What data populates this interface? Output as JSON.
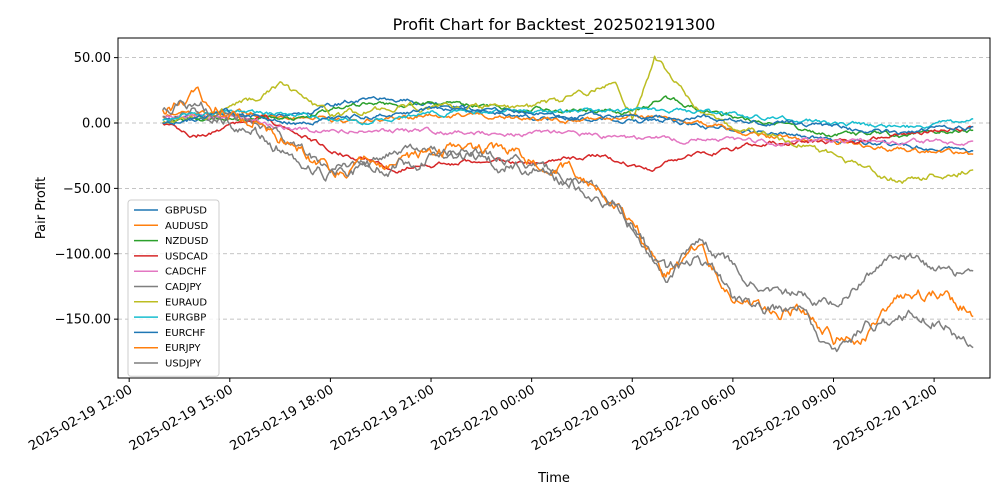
{
  "chart_data": {
    "type": "line",
    "title": "Profit Chart for Backtest_202502191300",
    "xlabel": "Time",
    "ylabel": "Pair Profit",
    "xlim": [
      "2025-02-19 11:40",
      "2025-02-20 13:40"
    ],
    "ylim": [
      -195,
      65
    ],
    "yticks": [
      50,
      0,
      -50,
      -100,
      -150
    ],
    "ytick_labels": [
      "50.00",
      "0.00",
      "−50.00",
      "−100.00",
      "−150.00"
    ],
    "xticks": [
      "2025-02-19 12:00",
      "2025-02-19 15:00",
      "2025-02-19 18:00",
      "2025-02-19 21:00",
      "2025-02-20 00:00",
      "2025-02-20 03:00",
      "2025-02-20 06:00",
      "2025-02-20 09:00",
      "2025-02-20 12:00"
    ],
    "xtick_labels": [
      "2025-02-19 12:00",
      "2025-02-19 15:00",
      "2025-02-19 18:00",
      "2025-02-19 21:00",
      "2025-02-20 00:00",
      "2025-02-20 03:00",
      "2025-02-20 06:00",
      "2025-02-20 09:00",
      "2025-02-20 12:00"
    ],
    "grid": "horizontal dashed",
    "legend_position": "lower-left",
    "series": [
      {
        "name": "GBPUSD",
        "color": "#1f77b4",
        "x": [
          "2025-02-19 13:00",
          "2025-02-19 15:00",
          "2025-02-19 17:00",
          "2025-02-19 19:00",
          "2025-02-19 20:00",
          "2025-02-19 22:00",
          "2025-02-20 00:00",
          "2025-02-20 02:00",
          "2025-02-20 04:00",
          "2025-02-20 06:00",
          "2025-02-20 08:00",
          "2025-02-20 10:00",
          "2025-02-20 12:00",
          "2025-02-20 13:10"
        ],
        "y": [
          2,
          6,
          5,
          20,
          18,
          12,
          5,
          3,
          2,
          -5,
          -10,
          -15,
          -18,
          -22
        ]
      },
      {
        "name": "AUDUSD",
        "color": "#ff7f0e",
        "x": [
          "2025-02-19 13:00",
          "2025-02-19 15:00",
          "2025-02-19 17:00",
          "2025-02-19 19:00",
          "2025-02-19 21:00",
          "2025-02-19 23:00",
          "2025-02-20 01:00",
          "2025-02-20 03:00",
          "2025-02-20 05:00",
          "2025-02-20 07:00",
          "2025-02-20 09:00",
          "2025-02-20 11:00",
          "2025-02-20 13:10"
        ],
        "y": [
          5,
          8,
          4,
          2,
          6,
          6,
          2,
          5,
          0,
          -10,
          -15,
          -20,
          -25
        ]
      },
      {
        "name": "NZDUSD",
        "color": "#2ca02c",
        "x": [
          "2025-02-19 13:00",
          "2025-02-19 15:00",
          "2025-02-19 17:00",
          "2025-02-19 19:00",
          "2025-02-19 21:00",
          "2025-02-19 23:00",
          "2025-02-20 01:00",
          "2025-02-20 03:00",
          "2025-02-20 04:00",
          "2025-02-20 05:00",
          "2025-02-20 07:00",
          "2025-02-20 09:00",
          "2025-02-20 11:00",
          "2025-02-20 13:10"
        ],
        "y": [
          0,
          4,
          5,
          15,
          15,
          12,
          10,
          8,
          20,
          10,
          0,
          -8,
          -10,
          -5
        ]
      },
      {
        "name": "USDCAD",
        "color": "#d62728",
        "x": [
          "2025-02-19 13:00",
          "2025-02-19 14:00",
          "2025-02-19 16:00",
          "2025-02-19 18:00",
          "2025-02-19 20:00",
          "2025-02-19 22:00",
          "2025-02-20 00:00",
          "2025-02-20 02:00",
          "2025-02-20 03:30",
          "2025-02-20 05:00",
          "2025-02-20 07:00",
          "2025-02-20 09:00",
          "2025-02-20 11:00",
          "2025-02-20 13:10"
        ],
        "y": [
          0,
          -10,
          5,
          -20,
          -35,
          -30,
          -30,
          -25,
          -35,
          -25,
          -15,
          -15,
          -8,
          -3
        ]
      },
      {
        "name": "CADCHF",
        "color": "#e377c2",
        "x": [
          "2025-02-19 13:00",
          "2025-02-19 15:00",
          "2025-02-19 17:00",
          "2025-02-19 19:00",
          "2025-02-19 21:00",
          "2025-02-19 23:00",
          "2025-02-20 01:00",
          "2025-02-20 03:00",
          "2025-02-20 05:00",
          "2025-02-20 07:00",
          "2025-02-20 09:00",
          "2025-02-20 11:00",
          "2025-02-20 13:10"
        ],
        "y": [
          5,
          5,
          -5,
          -5,
          -6,
          -8,
          -8,
          -12,
          -12,
          -15,
          -15,
          -15,
          -14
        ]
      },
      {
        "name": "CADJPY",
        "color": "#7f7f7f",
        "x": [
          "2025-02-19 13:00",
          "2025-02-19 14:00",
          "2025-02-19 16:00",
          "2025-02-19 18:00",
          "2025-02-19 20:00",
          "2025-02-19 22:00",
          "2025-02-20 00:00",
          "2025-02-20 01:30",
          "2025-02-20 02:30",
          "2025-02-20 03:00",
          "2025-02-20 04:00",
          "2025-02-20 05:00",
          "2025-02-20 06:00",
          "2025-02-20 07:00",
          "2025-02-20 08:00",
          "2025-02-20 09:00",
          "2025-02-20 10:00",
          "2025-02-20 11:00",
          "2025-02-20 12:00",
          "2025-02-20 13:10"
        ],
        "y": [
          5,
          10,
          0,
          -35,
          -25,
          -20,
          -30,
          -45,
          -60,
          -80,
          -120,
          -90,
          -110,
          -130,
          -130,
          -140,
          -115,
          -100,
          -110,
          -118
        ]
      },
      {
        "name": "EURAUD",
        "color": "#bcbd22",
        "x": [
          "2025-02-19 13:00",
          "2025-02-19 15:00",
          "2025-02-19 16:30",
          "2025-02-19 18:00",
          "2025-02-19 20:00",
          "2025-02-19 22:00",
          "2025-02-20 00:00",
          "2025-02-20 01:30",
          "2025-02-20 02:30",
          "2025-02-20 03:00",
          "2025-02-20 03:40",
          "2025-02-20 04:30",
          "2025-02-20 05:00",
          "2025-02-20 06:00",
          "2025-02-20 08:00",
          "2025-02-20 09:30",
          "2025-02-20 11:00",
          "2025-02-20 13:10"
        ],
        "y": [
          0,
          10,
          28,
          5,
          12,
          12,
          12,
          22,
          30,
          5,
          52,
          25,
          10,
          -5,
          -15,
          -30,
          -45,
          -35
        ]
      },
      {
        "name": "EURGBP",
        "color": "#17becf",
        "x": [
          "2025-02-19 13:00",
          "2025-02-19 15:00",
          "2025-02-19 17:00",
          "2025-02-19 19:00",
          "2025-02-19 21:00",
          "2025-02-19 23:00",
          "2025-02-20 01:00",
          "2025-02-20 03:00",
          "2025-02-20 05:00",
          "2025-02-20 07:00",
          "2025-02-20 09:00",
          "2025-02-20 11:00",
          "2025-02-20 13:10"
        ],
        "y": [
          2,
          10,
          5,
          2,
          8,
          10,
          8,
          10,
          8,
          4,
          0,
          -4,
          2
        ]
      },
      {
        "name": "EURCHF",
        "color": "#1f77b4",
        "x": [
          "2025-02-19 13:00",
          "2025-02-19 15:00",
          "2025-02-19 17:00",
          "2025-02-19 19:00",
          "2025-02-19 21:00",
          "2025-02-19 23:00",
          "2025-02-20 01:00",
          "2025-02-20 03:00",
          "2025-02-20 05:00",
          "2025-02-20 07:00",
          "2025-02-20 09:00",
          "2025-02-20 11:00",
          "2025-02-20 13:10"
        ],
        "y": [
          0,
          8,
          0,
          5,
          10,
          8,
          5,
          5,
          5,
          0,
          -3,
          -8,
          -3
        ]
      },
      {
        "name": "EURJPY",
        "color": "#ff7f0e",
        "x": [
          "2025-02-19 13:00",
          "2025-02-19 14:00",
          "2025-02-19 16:00",
          "2025-02-19 18:00",
          "2025-02-19 20:00",
          "2025-02-19 22:00",
          "2025-02-20 00:00",
          "2025-02-20 01:30",
          "2025-02-20 02:30",
          "2025-02-20 03:00",
          "2025-02-20 04:00",
          "2025-02-20 05:00",
          "2025-02-20 06:00",
          "2025-02-20 07:00",
          "2025-02-20 08:00",
          "2025-02-20 09:00",
          "2025-02-20 10:00",
          "2025-02-20 11:00",
          "2025-02-20 12:00",
          "2025-02-20 13:10"
        ],
        "y": [
          10,
          20,
          0,
          -35,
          -30,
          -20,
          -25,
          -40,
          -60,
          -75,
          -115,
          -95,
          -130,
          -145,
          -140,
          -165,
          -160,
          -135,
          -130,
          -145
        ]
      },
      {
        "name": "USDJPY",
        "color": "#7f7f7f",
        "x": [
          "2025-02-19 13:00",
          "2025-02-19 14:00",
          "2025-02-19 16:00",
          "2025-02-19 18:00",
          "2025-02-19 20:00",
          "2025-02-19 22:00",
          "2025-02-20 00:00",
          "2025-02-20 01:30",
          "2025-02-20 02:30",
          "2025-02-20 03:00",
          "2025-02-20 04:00",
          "2025-02-20 05:00",
          "2025-02-20 06:00",
          "2025-02-20 07:00",
          "2025-02-20 08:00",
          "2025-02-20 09:00",
          "2025-02-20 10:00",
          "2025-02-20 11:00",
          "2025-02-20 12:00",
          "2025-02-20 13:10"
        ],
        "y": [
          10,
          15,
          -10,
          -40,
          -30,
          -25,
          -35,
          -50,
          -60,
          -80,
          -115,
          -100,
          -135,
          -145,
          -140,
          -175,
          -155,
          -150,
          -150,
          -168
        ]
      }
    ]
  }
}
